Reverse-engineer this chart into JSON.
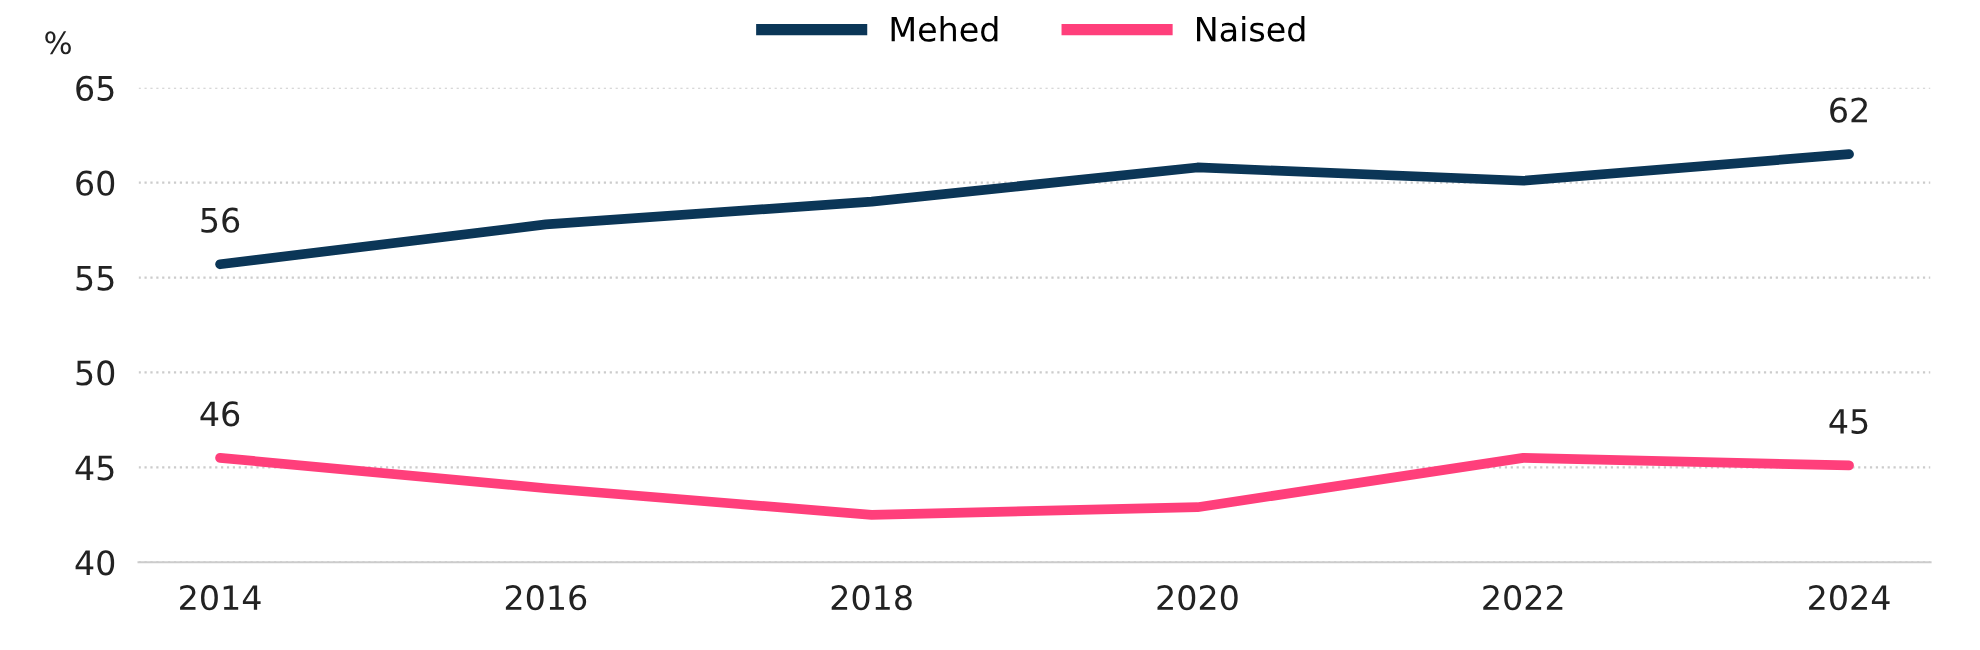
{
  "chart_data": {
    "type": "line",
    "ylabel": "%",
    "categories": [
      "2014",
      "2016",
      "2018",
      "2020",
      "2022",
      "2024"
    ],
    "series": [
      {
        "name": "Mehed",
        "color": "#0b3657",
        "values": [
          55.7,
          57.8,
          59.0,
          60.8,
          60.1,
          61.5
        ],
        "value_labels": [
          "56",
          null,
          null,
          null,
          null,
          "62"
        ]
      },
      {
        "name": "Naised",
        "color": "#ff3f7b",
        "values": [
          45.5,
          43.9,
          42.5,
          42.9,
          45.5,
          45.1
        ],
        "value_labels": [
          "46",
          null,
          null,
          null,
          null,
          "45"
        ]
      }
    ],
    "ylim": [
      40,
      65
    ],
    "yticks": [
      40,
      45,
      50,
      55,
      60,
      65
    ],
    "grid": "y",
    "legend": "top",
    "marker": "none",
    "line_style": "solid"
  }
}
